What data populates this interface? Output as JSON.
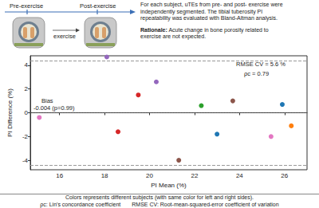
{
  "chart_data": {
    "type": "scatter",
    "x_label": "PI Mean (%)",
    "y_label": "PI Difference (%)",
    "x": [
      15.1,
      18.1,
      18.6,
      19.5,
      20.3,
      21.3,
      22.3,
      23.0,
      23.7,
      25.4,
      25.9,
      26.3
    ],
    "values": [
      -0.4,
      4.7,
      -1.6,
      1.5,
      2.6,
      -4.0,
      0.6,
      -1.8,
      1.0,
      -2.0,
      0.7,
      -1.1
    ],
    "colors": [
      "#e377c2",
      "#9467bd",
      "#d62728",
      "#d62728",
      "#9467bd",
      "#8c564b",
      "#2ca02c",
      "#1f77b4",
      "#8c564b",
      "#e377c2",
      "#1f77b4",
      "#ff7f0e"
    ],
    "marker": "circle",
    "xlim": [
      14.7,
      27.0
    ],
    "xticks": [
      16,
      18,
      20,
      22,
      24,
      26
    ],
    "ylim": [
      -4.8,
      4.8
    ],
    "yticks": [
      -4,
      -2,
      0,
      2,
      4
    ],
    "grid": false,
    "reference_lines": [
      {
        "value": 4.4,
        "line_style": "dashed"
      },
      {
        "value": -4.4,
        "line_style": "dashed"
      },
      {
        "value": -0.004,
        "line_style": "dotted"
      }
    ],
    "annotations": {
      "rmse": "RMSE CV = 5.6 %",
      "rho": "ρc = 0.79",
      "bias_label": "Bias",
      "bias_value": "-0.004 (p=0.99)"
    }
  },
  "diagram": {
    "pre_label": "Pre-exercise",
    "post_label": "Post-exercise",
    "exercise_label": "exercise"
  },
  "description": {
    "lines": [
      "For each subject, uTEs from pre- and post- exercise were",
      "independently segmented. The tibial tuberosity PI",
      "repeatability was evaluated with Bland-Altman analysis."
    ],
    "rationale_label": "Rationale:",
    "rationale_lines": [
      "Acute change in bone porosity related to",
      "exercise are not expected."
    ]
  },
  "caption": {
    "lines": [
      "Colors represents different subjects (with same color for left and right sides)."
    ],
    "items": [
      "ρc: Lin's concordance coefficient",
      "RMSE CV: Root-mean-squared-error coefficient of variation"
    ]
  }
}
